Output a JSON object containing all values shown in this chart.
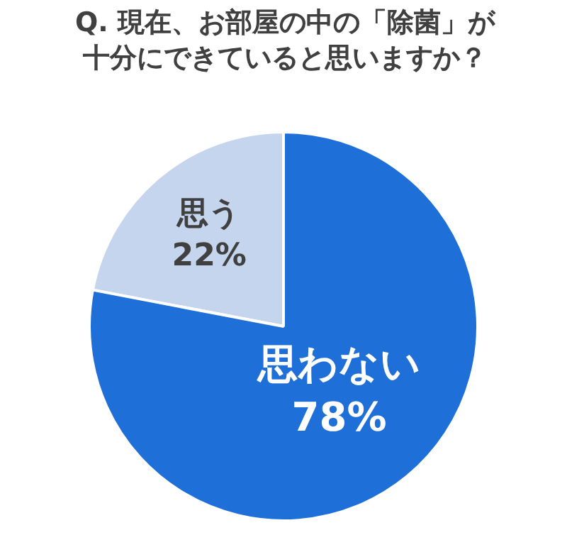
{
  "chart_data": {
    "type": "pie",
    "title": "Q. 現在、お部屋の中の「除菌」が十分にできていると思いますか？",
    "categories": [
      "思う",
      "思わない"
    ],
    "values": [
      22,
      78
    ],
    "value_labels": [
      "22%",
      "78%"
    ],
    "colors": [
      "#c5d5ee",
      "#1f6fd8"
    ],
    "legend": false
  }
}
